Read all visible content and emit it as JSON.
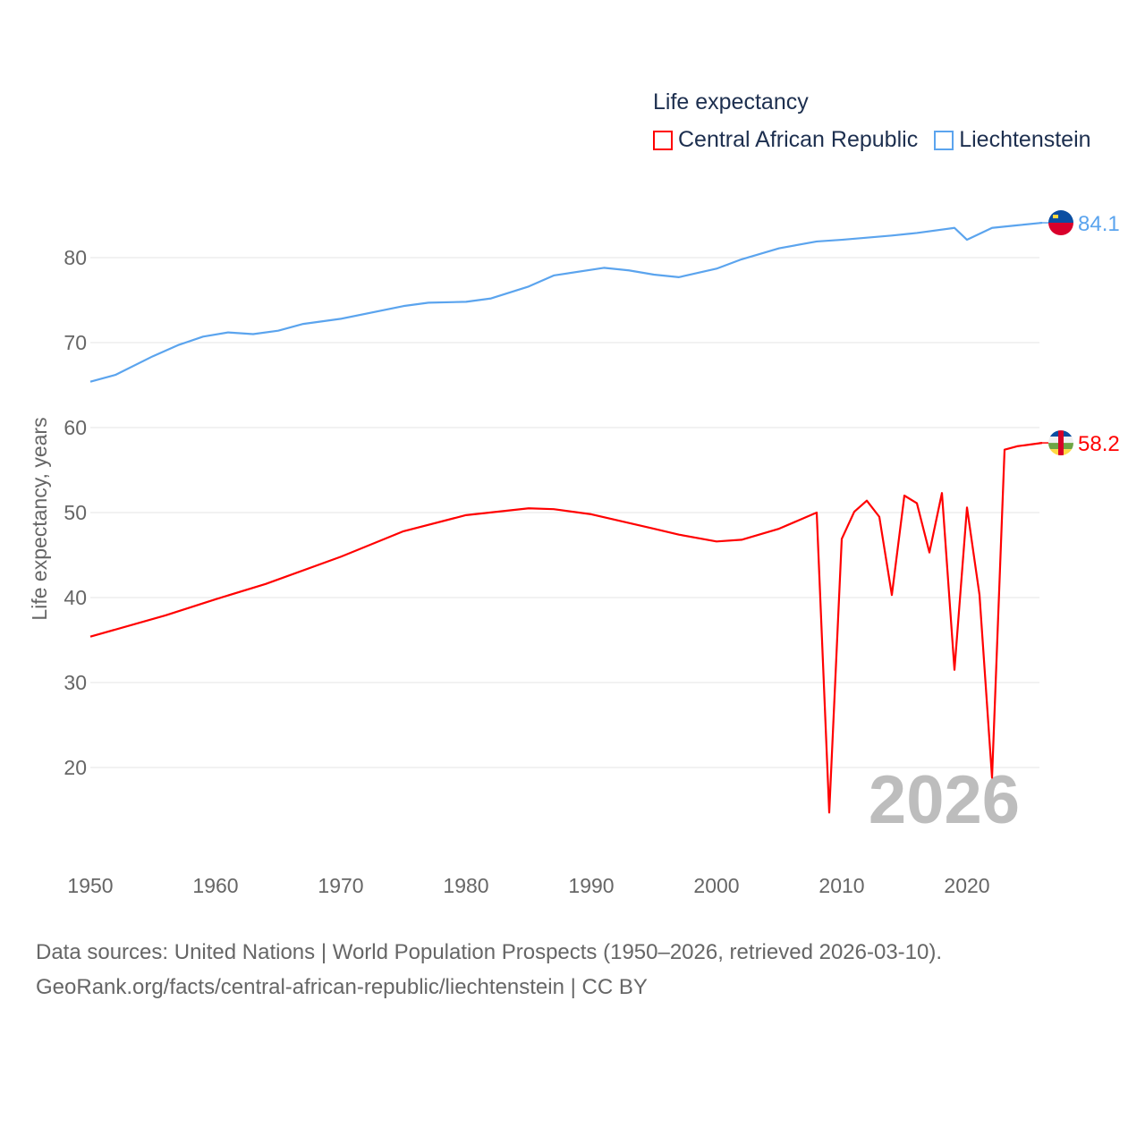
{
  "chart_data": {
    "type": "line",
    "title": "Life expectancy",
    "xlabel": "",
    "ylabel": "Life expectancy, years",
    "xlim": [
      1950,
      2026
    ],
    "ylim": [
      11,
      90
    ],
    "yticks": [
      20,
      30,
      40,
      50,
      60,
      70,
      80
    ],
    "xticks": [
      1950,
      1960,
      1970,
      1980,
      1990,
      2000,
      2010,
      2020
    ],
    "grid": true,
    "legend_placement": "top-right",
    "year_watermark": "2026",
    "series": [
      {
        "name": "Central African Republic",
        "color": "#ff0000",
        "end_label": "58.2",
        "x": [
          1950,
          1956,
          1960,
          1964,
          1970,
          1975,
          1980,
          1985,
          1987,
          1990,
          1995,
          1997,
          2000,
          2002,
          2005,
          2008,
          2009,
          2010,
          2011,
          2012,
          2013,
          2014,
          2015,
          2016,
          2017,
          2018,
          2019,
          2020,
          2021,
          2022,
          2023,
          2024,
          2025,
          2026
        ],
        "y": [
          35.4,
          37.9,
          39.8,
          41.6,
          44.8,
          47.8,
          49.7,
          50.5,
          50.4,
          49.8,
          48.1,
          47.4,
          46.6,
          46.8,
          48.1,
          50.0,
          14.7,
          46.9,
          50.1,
          51.4,
          49.5,
          40.3,
          52.0,
          51.1,
          45.3,
          52.3,
          31.5,
          50.6,
          40.3,
          18.8,
          57.4,
          57.8,
          58.0,
          58.2
        ]
      },
      {
        "name": "Liechtenstein",
        "color": "#5ba4ee",
        "end_label": "84.1",
        "x": [
          1950,
          1952,
          1955,
          1957,
          1959,
          1961,
          1963,
          1965,
          1967,
          1970,
          1975,
          1977,
          1980,
          1982,
          1985,
          1987,
          1991,
          1993,
          1995,
          1997,
          2000,
          2002,
          2005,
          2008,
          2010,
          2014,
          2016,
          2019,
          2020,
          2022,
          2024,
          2026
        ],
        "y": [
          65.4,
          66.2,
          68.4,
          69.7,
          70.7,
          71.2,
          71.0,
          71.4,
          72.2,
          72.8,
          74.3,
          74.7,
          74.8,
          75.2,
          76.6,
          77.9,
          78.8,
          78.5,
          78.0,
          77.7,
          78.7,
          79.8,
          81.1,
          81.9,
          82.1,
          82.6,
          82.9,
          83.5,
          82.1,
          83.5,
          83.8,
          84.1
        ]
      }
    ]
  },
  "source": {
    "line1": "Data sources: United Nations | World Population Prospects (1950–2026, retrieved 2026-03-10).",
    "line2": "GeoRank.org/facts/central-african-republic/liechtenstein | CC BY"
  }
}
